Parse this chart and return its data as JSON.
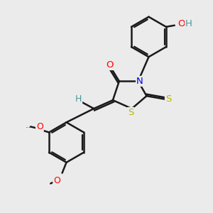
{
  "background_color": "#ebebeb",
  "bond_color": "#1a1a1a",
  "bond_width": 1.8,
  "dbo": 0.08,
  "atom_colors": {
    "O": "#ff0000",
    "OH_O": "#ff0000",
    "OH_H": "#4a9a9a",
    "N": "#0000ee",
    "S": "#b8b800",
    "H": "#4a9a9a",
    "C": "#1a1a1a"
  },
  "figsize": [
    3.0,
    3.0
  ],
  "dpi": 100
}
